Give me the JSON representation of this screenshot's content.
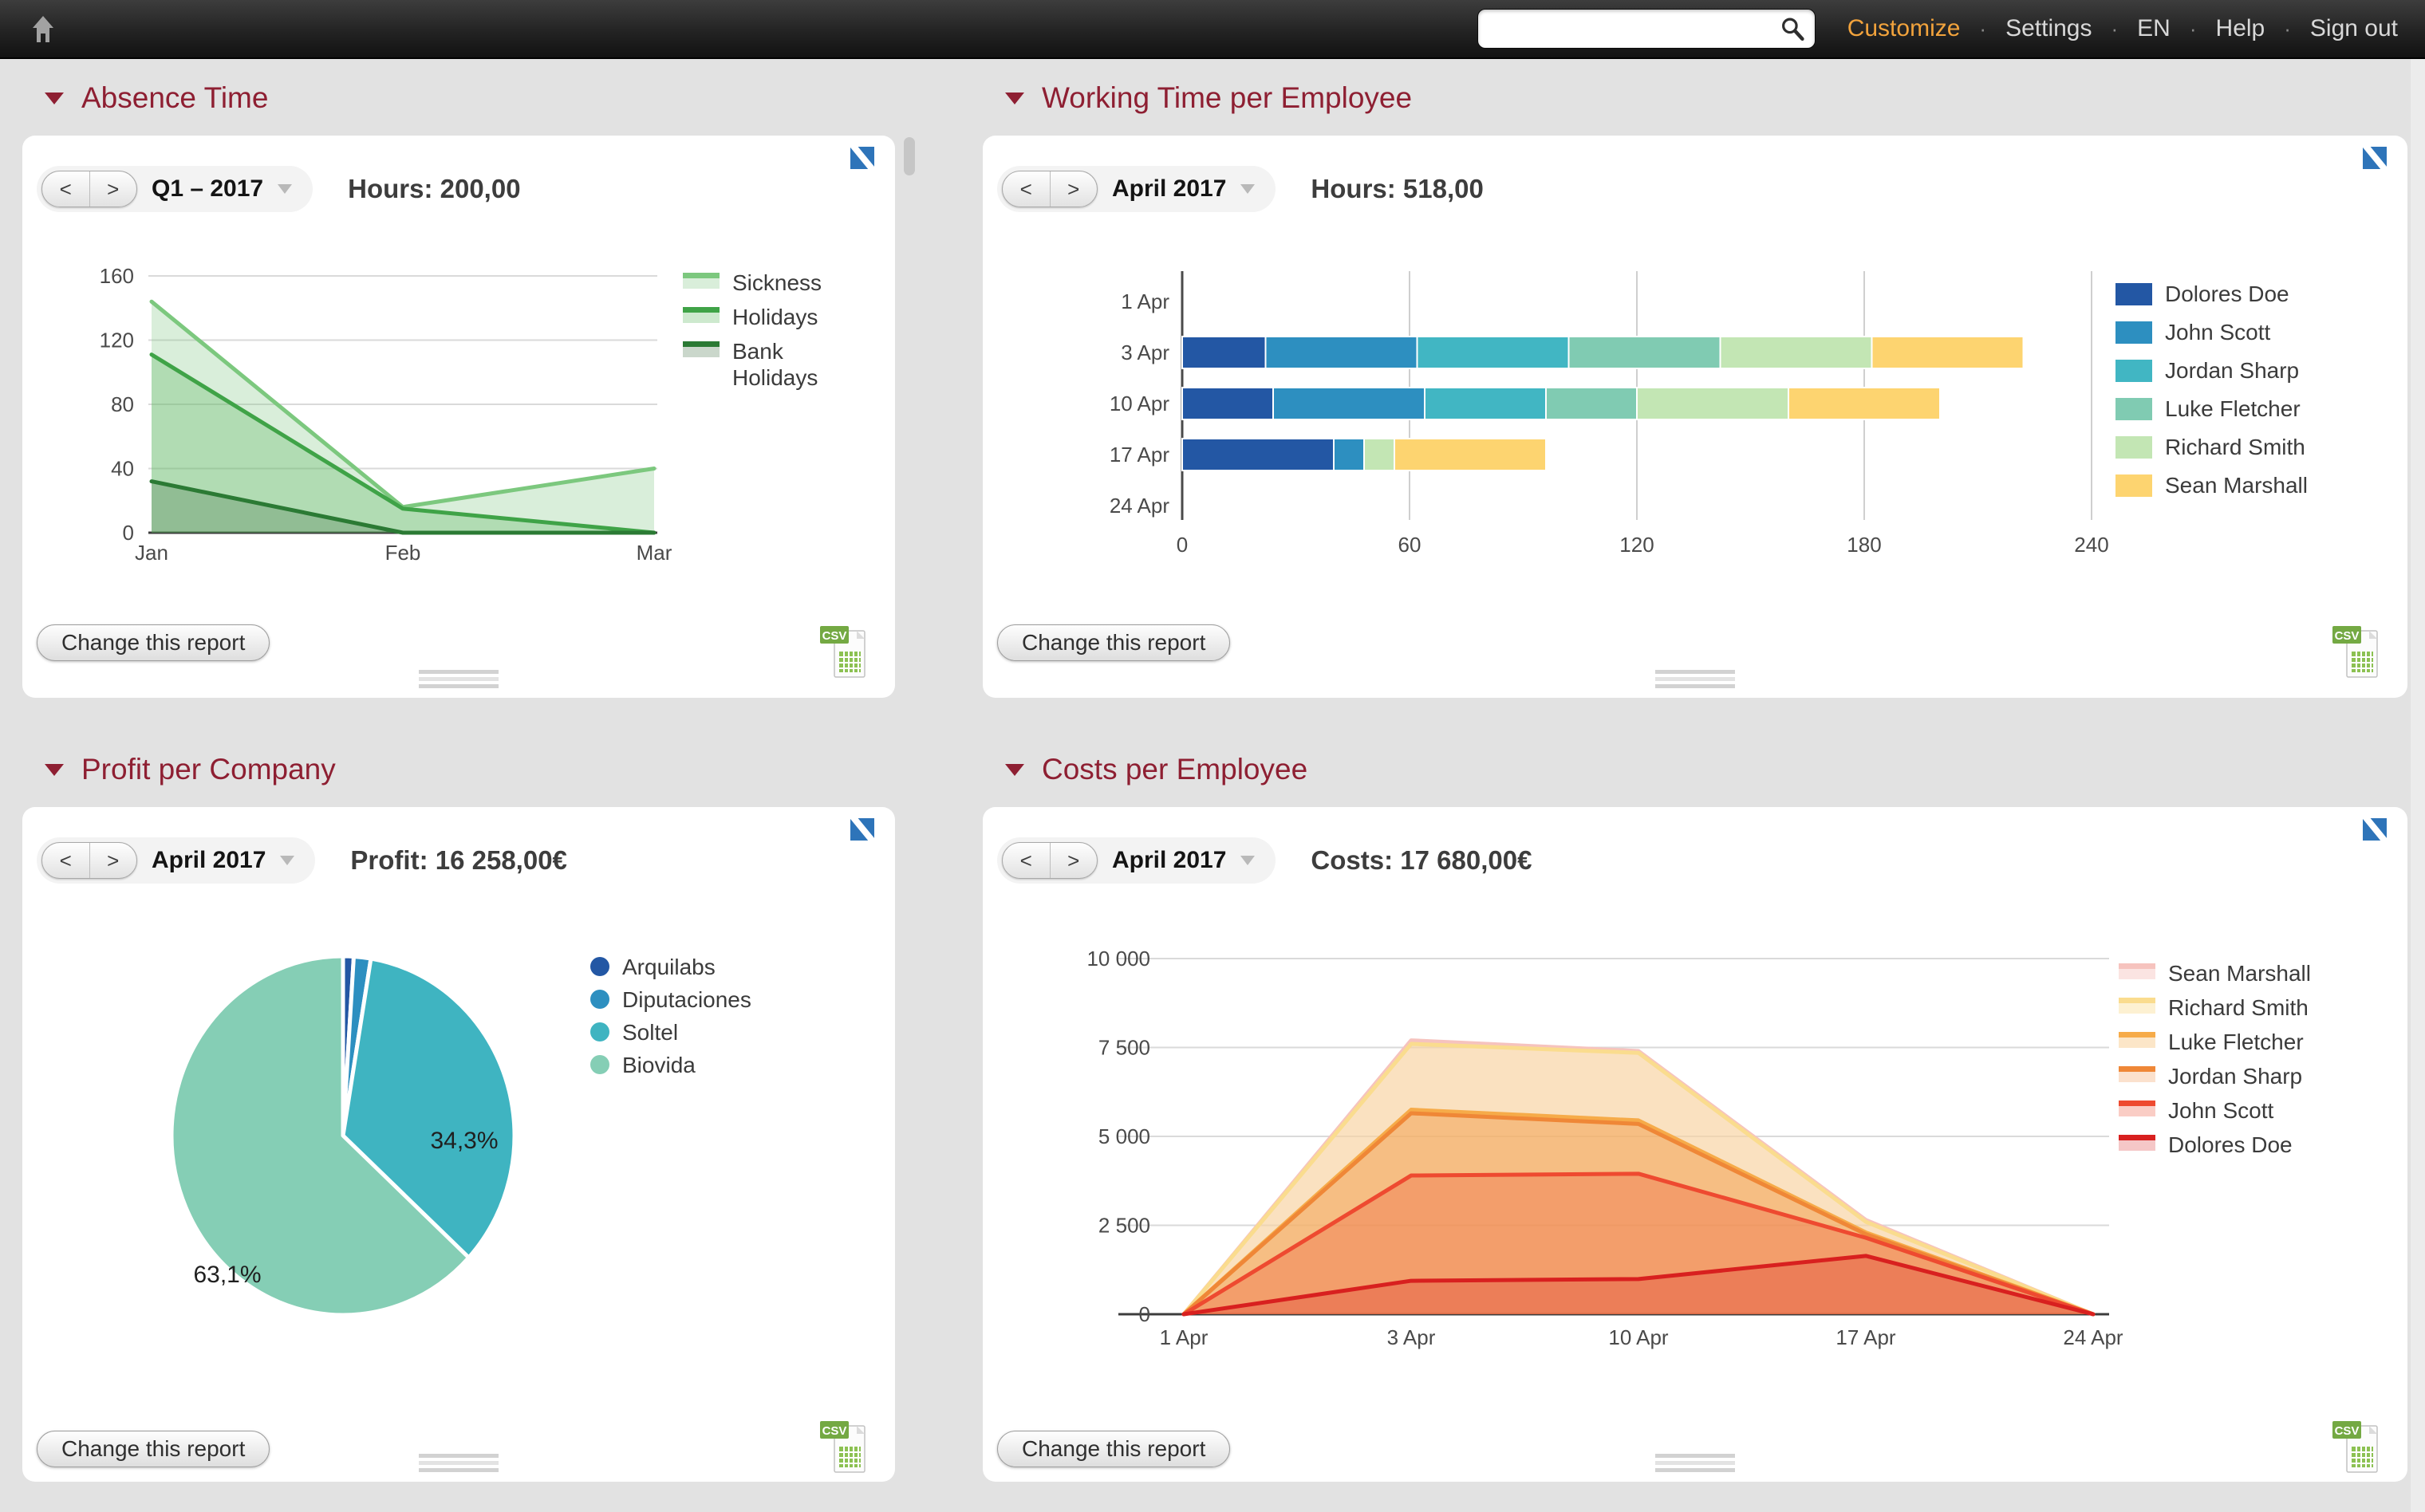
{
  "topbar": {
    "search": {
      "value": "",
      "placeholder": ""
    },
    "links": {
      "customize": "Customize",
      "settings": "Settings",
      "language": "EN",
      "help": "Help",
      "sign_out": "Sign out",
      "separator": "·"
    }
  },
  "common": {
    "prev": "<",
    "next": ">",
    "change_report": "Change this report",
    "csv_label": "CSV"
  },
  "colors": {
    "section_title": "#8e1f32",
    "accent_link": "#f2a33c",
    "page_background": "#e2e2e2",
    "expand_icon_blue": "#2e74b9"
  },
  "panels": {
    "absence": {
      "title": "Absence Time",
      "period": "Q1 – 2017",
      "stat": "Hours: 200,00",
      "chart_data": {
        "type": "area",
        "x": [
          "Jan",
          "Feb",
          "Mar"
        ],
        "ylim": [
          0,
          160
        ],
        "yticks": [
          0,
          40,
          80,
          120,
          160
        ],
        "legend_position": "right",
        "series": [
          {
            "name": "Sickness",
            "color": "#7cc87e",
            "fill": "rgba(129,199,132,0.30)",
            "values": [
              144,
              16,
              40
            ]
          },
          {
            "name": "Holidays",
            "color": "#3fa347",
            "fill": "rgba(76,175,80,0.28)",
            "values": [
              111,
              15,
              0
            ]
          },
          {
            "name": "Bank Holidays",
            "color": "#2b7a34",
            "fill": "rgba(64,110,70,0.28)",
            "values": [
              32,
              0,
              0
            ]
          }
        ]
      }
    },
    "working": {
      "title": "Working Time per Employee",
      "period": "April 2017",
      "stat": "Hours: 518,00",
      "chart_data": {
        "type": "bar-stacked-horizontal",
        "categories": [
          "1 Apr",
          "3 Apr",
          "10 Apr",
          "17 Apr",
          "24 Apr"
        ],
        "xlim": [
          0,
          240
        ],
        "xticks": [
          0,
          60,
          120,
          180,
          240
        ],
        "legend_position": "right",
        "series": [
          {
            "name": "Dolores Doe",
            "color": "#2357a4",
            "values": [
              0,
              22,
              24,
              40,
              0
            ]
          },
          {
            "name": "John Scott",
            "color": "#2d8fc0",
            "values": [
              0,
              40,
              40,
              8,
              0
            ]
          },
          {
            "name": "Jordan Sharp",
            "color": "#41b6c3",
            "values": [
              0,
              40,
              32,
              0,
              0
            ]
          },
          {
            "name": "Luke Fletcher",
            "color": "#80cbb2",
            "values": [
              0,
              40,
              24,
              0,
              0
            ]
          },
          {
            "name": "Richard Smith",
            "color": "#c3e6b4",
            "values": [
              0,
              40,
              40,
              8,
              0
            ]
          },
          {
            "name": "Sean Marshall",
            "color": "#fdd470",
            "values": [
              0,
              40,
              40,
              40,
              0
            ]
          }
        ]
      }
    },
    "profit": {
      "title": "Profit per Company",
      "period": "April 2017",
      "stat": "Profit: 16 258,00€",
      "chart_data": {
        "type": "pie",
        "labels": [
          "Arquilabs",
          "Diputaciones",
          "Soltel",
          "Biovida"
        ],
        "values": [
          1.0,
          1.6,
          34.3,
          63.1
        ],
        "colors": [
          "#2357a4",
          "#2d8fc0",
          "#3fb4c1",
          "#85ceb5"
        ],
        "slice_labels": [
          "",
          "",
          "34,3%",
          "63,1%"
        ],
        "legend_position": "right"
      }
    },
    "costs": {
      "title": "Costs per Employee",
      "period": "April 2017",
      "stat": "Costs: 17 680,00€",
      "chart_data": {
        "type": "area",
        "x": [
          "1 Apr",
          "3 Apr",
          "10 Apr",
          "17 Apr",
          "24 Apr"
        ],
        "ylim": [
          0,
          10000
        ],
        "yticks": [
          0,
          2500,
          5000,
          7500,
          10000
        ],
        "ytick_labels": [
          "0",
          "2 500",
          "5 000",
          "7 500",
          "10 000"
        ],
        "legend_position": "right",
        "series": [
          {
            "name": "Sean Marshall",
            "color": "#f6c3be",
            "fill": "rgba(246,195,190,0.45)",
            "values": [
              0,
              7700,
              7400,
              2650,
              0
            ]
          },
          {
            "name": "Richard Smith",
            "color": "#fadc8e",
            "fill": "rgba(250,220,142,0.40)",
            "values": [
              0,
              7600,
              7350,
              2600,
              0
            ]
          },
          {
            "name": "Luke Fletcher",
            "color": "#f6ab49",
            "fill": "rgba(246,171,73,0.30)",
            "values": [
              0,
              5750,
              5450,
              2300,
              0
            ]
          },
          {
            "name": "Jordan Sharp",
            "color": "#ef8737",
            "fill": "rgba(239,135,55,0.25)",
            "values": [
              0,
              5650,
              5350,
              2250,
              0
            ]
          },
          {
            "name": "John Scott",
            "color": "#ee4a30",
            "fill": "rgba(238,74,48,0.28)",
            "values": [
              0,
              3900,
              3950,
              2150,
              0
            ]
          },
          {
            "name": "Dolores Doe",
            "color": "#d8201f",
            "fill": "rgba(216,32,31,0.25)",
            "values": [
              0,
              940,
              990,
              1640,
              0
            ]
          }
        ]
      }
    }
  }
}
